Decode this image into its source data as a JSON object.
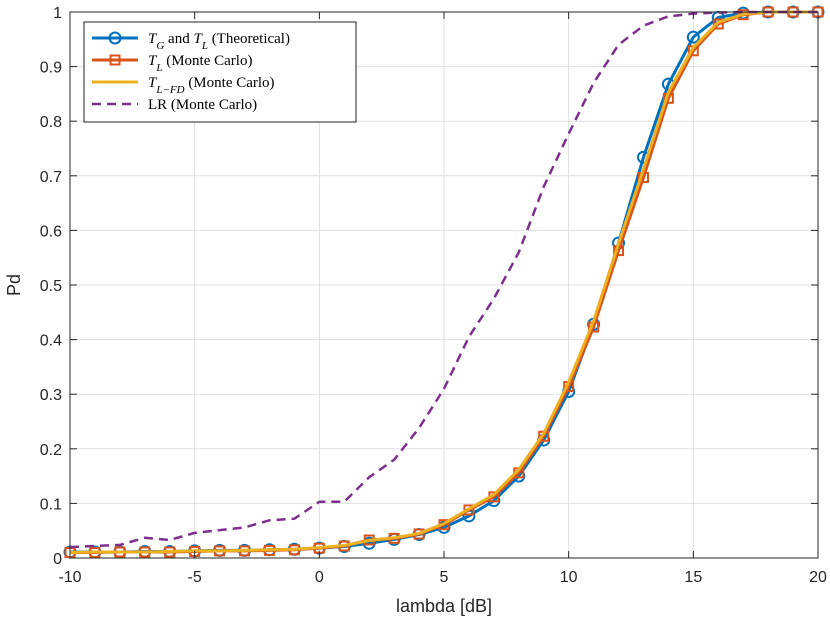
{
  "chart_data": {
    "type": "line",
    "title": "",
    "xlabel": "lambda [dB]",
    "ylabel": "Pd",
    "xlim": [
      -10,
      20
    ],
    "ylim": [
      0,
      1
    ],
    "xticks": [
      -10,
      -5,
      0,
      5,
      10,
      15,
      20
    ],
    "yticks": [
      0,
      0.1,
      0.2,
      0.3,
      0.4,
      0.5,
      0.6,
      0.7,
      0.8,
      0.9,
      1
    ],
    "grid": true,
    "legend_position": "top-left",
    "x": [
      -10,
      -9,
      -8,
      -7,
      -6,
      -5,
      -4,
      -3,
      -2,
      -1,
      0,
      1,
      2,
      3,
      4,
      5,
      6,
      7,
      8,
      9,
      10,
      11,
      12,
      13,
      14,
      15,
      16,
      17,
      18,
      19,
      20
    ],
    "series": [
      {
        "name": "T_G and T_L (Theoretical)",
        "color": "#0072BD",
        "style": "solid",
        "marker": "circle",
        "values": [
          0.011,
          0.011,
          0.011,
          0.012,
          0.012,
          0.013,
          0.014,
          0.014,
          0.015,
          0.016,
          0.018,
          0.021,
          0.027,
          0.034,
          0.043,
          0.056,
          0.077,
          0.105,
          0.15,
          0.216,
          0.305,
          0.428,
          0.577,
          0.734,
          0.868,
          0.954,
          0.99,
          0.998,
          1.0,
          1.0,
          1.0
        ]
      },
      {
        "name": "T_L (Monte Carlo)",
        "color": "#D95319",
        "style": "solid",
        "marker": "square",
        "values": [
          0.01,
          0.01,
          0.011,
          0.011,
          0.011,
          0.012,
          0.013,
          0.013,
          0.014,
          0.015,
          0.018,
          0.022,
          0.033,
          0.036,
          0.044,
          0.061,
          0.088,
          0.112,
          0.156,
          0.223,
          0.314,
          0.423,
          0.563,
          0.697,
          0.842,
          0.929,
          0.978,
          0.995,
          1.0,
          1.0,
          1.0
        ]
      },
      {
        "name": "T_{L-FD} (Monte Carlo)",
        "color": "#EDB120",
        "style": "solid",
        "marker": "none",
        "values": [
          0.01,
          0.011,
          0.011,
          0.011,
          0.012,
          0.013,
          0.013,
          0.014,
          0.015,
          0.016,
          0.019,
          0.023,
          0.032,
          0.037,
          0.045,
          0.063,
          0.09,
          0.116,
          0.162,
          0.228,
          0.322,
          0.434,
          0.576,
          0.712,
          0.853,
          0.935,
          0.981,
          0.996,
          1.0,
          1.0,
          1.0
        ]
      },
      {
        "name": "LR (Monte Carlo)",
        "color": "#7E2F8E",
        "style": "dashed",
        "marker": "none",
        "values": [
          0.02,
          0.022,
          0.024,
          0.037,
          0.033,
          0.046,
          0.051,
          0.056,
          0.069,
          0.072,
          0.103,
          0.103,
          0.148,
          0.18,
          0.238,
          0.31,
          0.405,
          0.475,
          0.56,
          0.68,
          0.777,
          0.87,
          0.94,
          0.975,
          0.992,
          0.997,
          0.999,
          1.0,
          1.0,
          1.0,
          1.0
        ]
      }
    ],
    "legend_entries": [
      {
        "main": "T",
        "sub": "G",
        "mid": " and ",
        "main2": "T",
        "sub2": "L",
        "rest": " (Theoretical)"
      },
      {
        "main": "T",
        "sub": "L",
        "rest": " (Monte Carlo)"
      },
      {
        "main": "T",
        "sub": "L−FD",
        "rest": " (Monte Carlo)"
      },
      {
        "main": "LR",
        "rest": " (Monte Carlo)"
      }
    ]
  }
}
